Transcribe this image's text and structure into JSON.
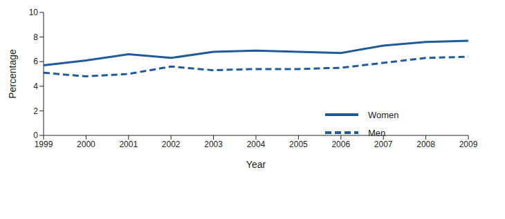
{
  "chart_data": {
    "type": "line",
    "x_label": "Year",
    "y_label": "Percentage",
    "x": [
      1999,
      2000,
      2001,
      2002,
      2003,
      2004,
      2005,
      2006,
      2007,
      2008,
      2009
    ],
    "xlim": [
      1999,
      2009
    ],
    "xticks": [
      1999,
      2000,
      2001,
      2002,
      2003,
      2004,
      2005,
      2006,
      2007,
      2008,
      2009
    ],
    "ylim": [
      0,
      10
    ],
    "yticks": [
      0,
      2,
      4,
      6,
      8,
      10
    ],
    "grid": false,
    "legend": "right",
    "series": [
      {
        "name": "Women",
        "color": "#1f5b99",
        "line_style": "solid",
        "values": [
          5.7,
          6.1,
          6.6,
          6.3,
          6.8,
          6.9,
          6.8,
          6.7,
          7.3,
          7.6,
          7.7
        ]
      },
      {
        "name": "Men",
        "color": "#1f5b99",
        "line_style": "dashed",
        "values": [
          5.1,
          4.8,
          5.0,
          5.6,
          5.3,
          5.4,
          5.4,
          5.5,
          5.9,
          6.3,
          6.4
        ]
      }
    ]
  }
}
